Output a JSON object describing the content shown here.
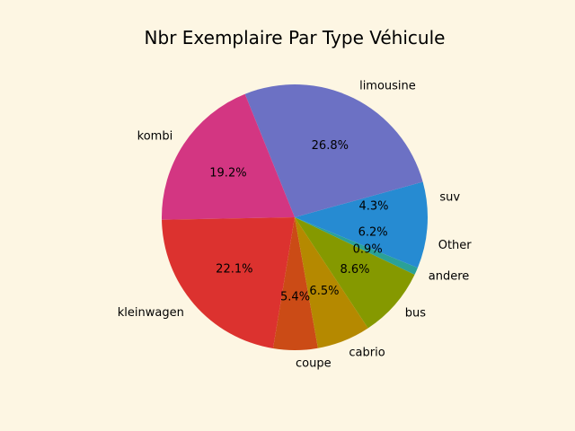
{
  "chart_data": {
    "type": "pie",
    "title": "Nbr Exemplaire Par Type Véhicule",
    "slices": [
      {
        "label": "suv",
        "percent": 4.3,
        "pct_label": "4.3%",
        "color": "#268bd2"
      },
      {
        "label": "limousine",
        "percent": 26.8,
        "pct_label": "26.8%",
        "color": "#6c71c4"
      },
      {
        "label": "kombi",
        "percent": 19.2,
        "pct_label": "19.2%",
        "color": "#d33682"
      },
      {
        "label": "kleinwagen",
        "percent": 22.1,
        "pct_label": "22.1%",
        "color": "#dc322f"
      },
      {
        "label": "coupe",
        "percent": 5.4,
        "pct_label": "5.4%",
        "color": "#cb4b16"
      },
      {
        "label": "cabrio",
        "percent": 6.5,
        "pct_label": "6.5%",
        "color": "#b58900"
      },
      {
        "label": "bus",
        "percent": 8.6,
        "pct_label": "8.6%",
        "color": "#859900"
      },
      {
        "label": "andere",
        "percent": 0.9,
        "pct_label": "0.9%",
        "color": "#2aa198"
      },
      {
        "label": "Other",
        "percent": 6.2,
        "pct_label": "6.2%",
        "color": "#268bd2"
      }
    ]
  }
}
